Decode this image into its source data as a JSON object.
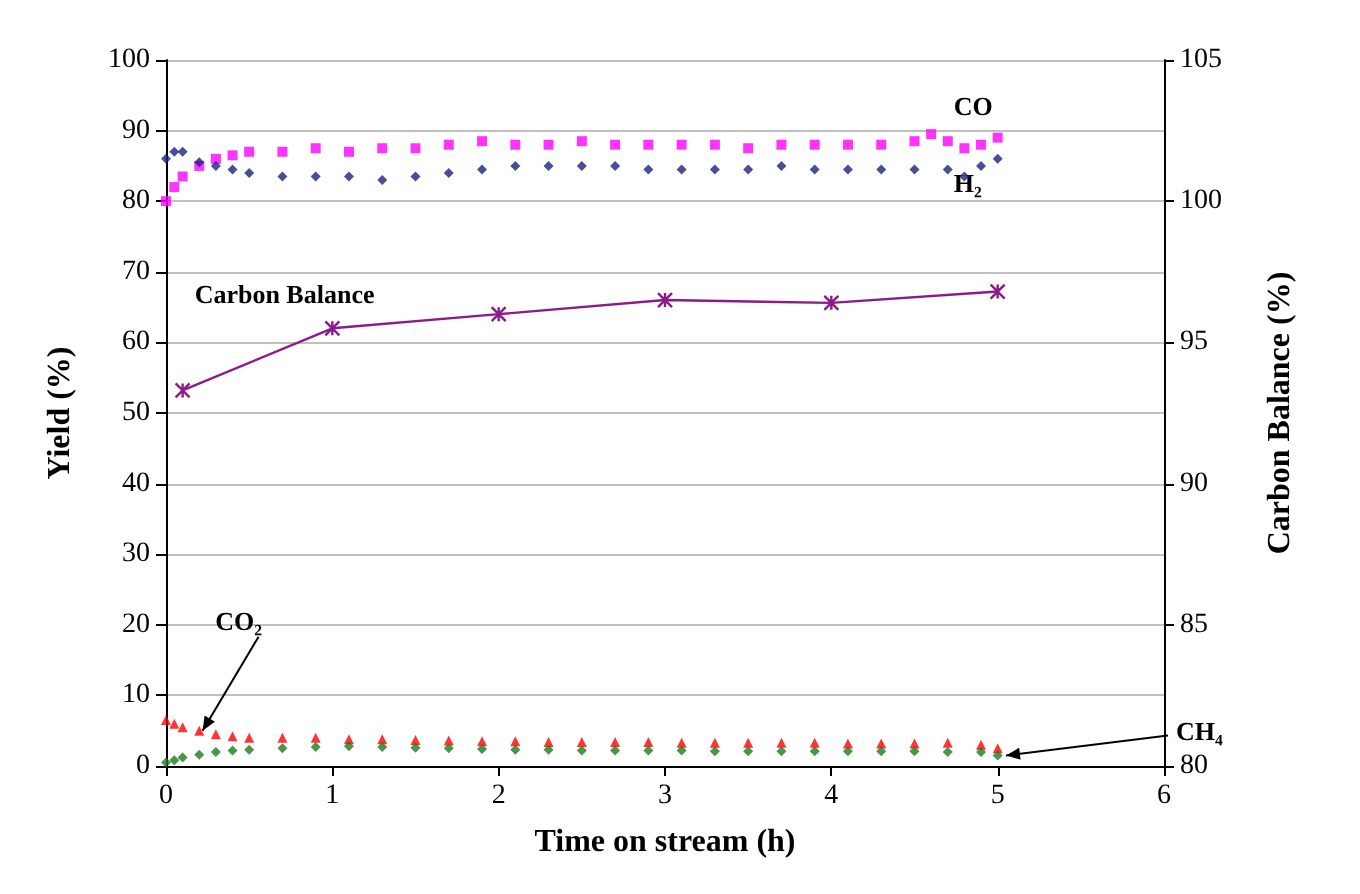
{
  "chart_data": {
    "type": "scatter",
    "xlabel": "Time on stream (h)",
    "ylabel": "Yield (%)",
    "y2label": "Carbon Balance (%)",
    "xlim": [
      0,
      6
    ],
    "xticks": [
      0,
      1,
      2,
      3,
      4,
      5,
      6
    ],
    "ylim": [
      0,
      100
    ],
    "yticks": [
      0,
      10,
      20,
      30,
      40,
      50,
      60,
      70,
      80,
      90,
      100
    ],
    "y2lim": [
      80,
      105
    ],
    "y2ticks": [
      80,
      85,
      90,
      95,
      100,
      105
    ],
    "grid": "y",
    "series": [
      {
        "color": "#ff00ff",
        "marker": "square",
        "x": [
          0,
          0.05,
          0.1,
          0.2,
          0.3,
          0.4,
          0.5,
          0.7,
          0.9,
          1.1,
          1.3,
          1.5,
          1.7,
          1.9,
          2.1,
          2.3,
          2.5,
          2.7,
          2.9,
          3.1,
          3.3,
          3.5,
          3.7,
          3.9,
          4.1,
          4.3,
          4.5,
          4.6,
          4.7,
          4.8,
          4.9,
          5.0
        ],
        "values": [
          80,
          82,
          83.5,
          85,
          86,
          86.5,
          87,
          87,
          87.5,
          87,
          87.5,
          87.5,
          88,
          88.5,
          88,
          88,
          88.5,
          88,
          88,
          88,
          88,
          87.5,
          88,
          88,
          88,
          88,
          88.5,
          89.5,
          88.5,
          87.5,
          88,
          89
        ]
      },
      {
        "color": "#1a237e",
        "marker": "diamond",
        "x": [
          0,
          0.05,
          0.1,
          0.2,
          0.3,
          0.4,
          0.5,
          0.7,
          0.9,
          1.1,
          1.3,
          1.5,
          1.7,
          1.9,
          2.1,
          2.3,
          2.5,
          2.7,
          2.9,
          3.1,
          3.3,
          3.5,
          3.7,
          3.9,
          4.1,
          4.3,
          4.5,
          4.7,
          4.8,
          4.9,
          5.0
        ],
        "values": [
          86,
          87,
          87,
          85.5,
          85,
          84.5,
          84,
          83.5,
          83.5,
          83.5,
          83,
          83.5,
          84,
          84.5,
          85,
          85,
          85,
          85,
          84.5,
          84.5,
          84.5,
          84.5,
          85,
          84.5,
          84.5,
          84.5,
          84.5,
          84.5,
          83.5,
          85,
          86
        ]
      },
      {
        "color": "#ff0000",
        "marker": "triangle",
        "x": [
          0,
          0.05,
          0.1,
          0.2,
          0.3,
          0.4,
          0.5,
          0.7,
          0.9,
          1.1,
          1.3,
          1.5,
          1.7,
          1.9,
          2.1,
          2.3,
          2.5,
          2.7,
          2.9,
          3.1,
          3.3,
          3.5,
          3.7,
          3.9,
          4.1,
          4.3,
          4.5,
          4.7,
          4.9,
          5.0
        ],
        "values": [
          6.5,
          6,
          5.5,
          5,
          4.5,
          4.2,
          4,
          4,
          4,
          3.8,
          3.8,
          3.7,
          3.6,
          3.5,
          3.5,
          3.4,
          3.4,
          3.4,
          3.4,
          3.3,
          3.3,
          3.3,
          3.3,
          3.3,
          3.2,
          3.2,
          3.2,
          3.3,
          3,
          2.5
        ]
      },
      {
        "color": "#1b7a1b",
        "marker": "diamond",
        "x": [
          0,
          0.05,
          0.1,
          0.2,
          0.3,
          0.4,
          0.5,
          0.7,
          0.9,
          1.1,
          1.3,
          1.5,
          1.7,
          1.9,
          2.1,
          2.3,
          2.5,
          2.7,
          2.9,
          3.1,
          3.3,
          3.5,
          3.7,
          3.9,
          4.1,
          4.3,
          4.5,
          4.7,
          4.9,
          5.0
        ],
        "values": [
          0.5,
          0.8,
          1.2,
          1.6,
          2,
          2.2,
          2.3,
          2.5,
          2.7,
          2.8,
          2.7,
          2.6,
          2.5,
          2.4,
          2.3,
          2.3,
          2.2,
          2.2,
          2.2,
          2.2,
          2.1,
          2.1,
          2.1,
          2.1,
          2.1,
          2.1,
          2.1,
          2,
          2,
          1.5
        ]
      },
      {
        "type": "line",
        "axis": "y2",
        "color": "#8b1a8b",
        "marker": "cross",
        "x": [
          0.1,
          1,
          2,
          3,
          4,
          5
        ],
        "values": [
          93.3,
          95.5,
          96.0,
          96.5,
          96.4,
          96.8
        ]
      }
    ],
    "annotations": [
      "CO",
      "H₂",
      "Carbon Balance",
      {
        "text": "CO₂",
        "x": 0.22,
        "y": 5
      },
      {
        "text": "CH₄",
        "x": 5.05,
        "y": 1.5
      }
    ]
  }
}
